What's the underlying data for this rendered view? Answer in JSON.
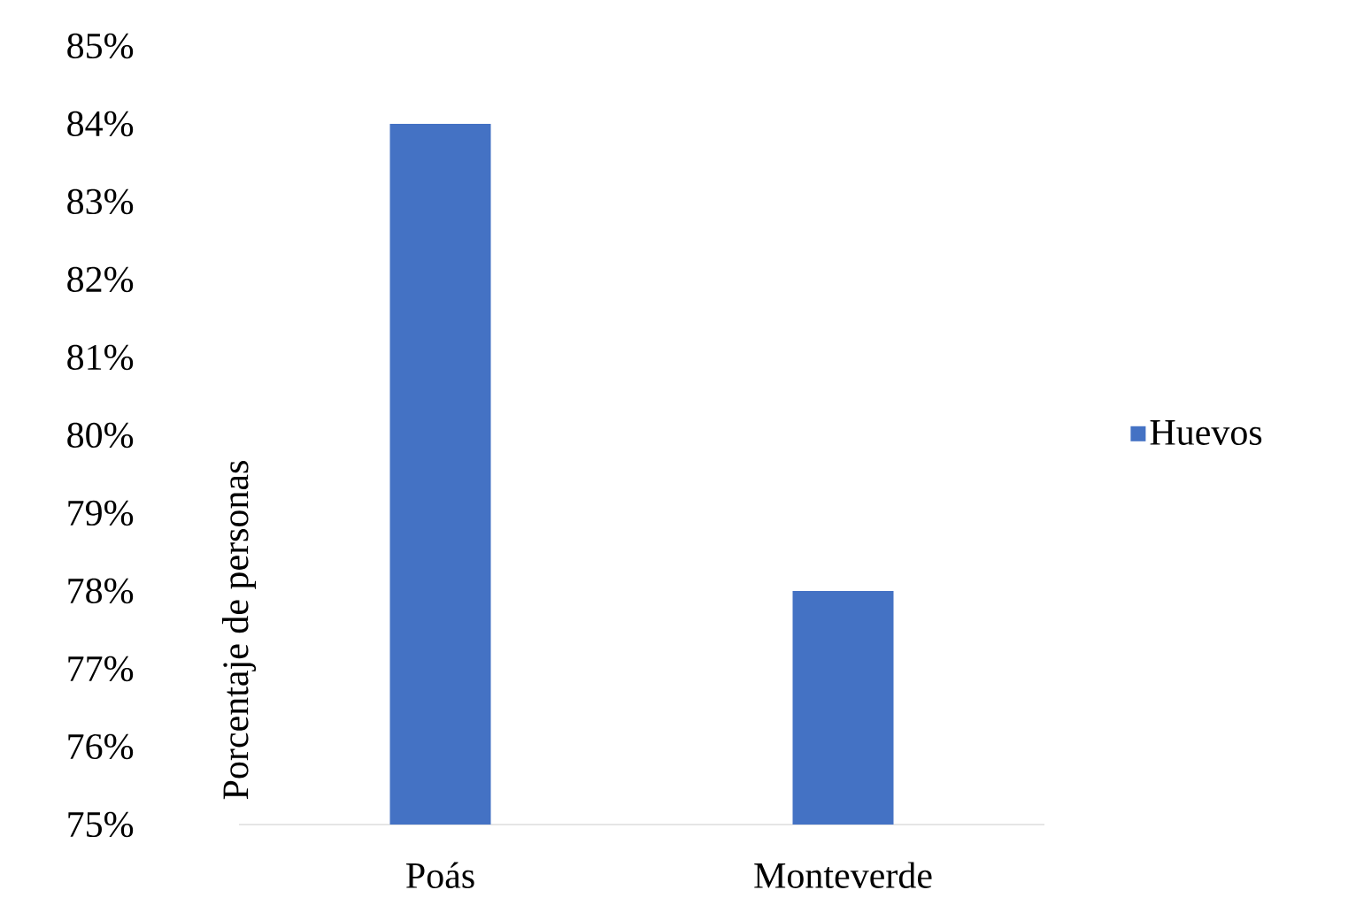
{
  "chart_data": {
    "type": "bar",
    "ylabel": "Porcentaje de personas",
    "categories": [
      "Poás",
      "Monteverde"
    ],
    "series": [
      {
        "name": "Huevos",
        "color": "#4472c4",
        "values": [
          84,
          78
        ]
      }
    ],
    "ylim": [
      75,
      85
    ],
    "yticks": [
      {
        "value": 75,
        "label": "75%"
      },
      {
        "value": 76,
        "label": "76%"
      },
      {
        "value": 77,
        "label": "77%"
      },
      {
        "value": 78,
        "label": "78%"
      },
      {
        "value": 79,
        "label": "79%"
      },
      {
        "value": 80,
        "label": "80%"
      },
      {
        "value": 81,
        "label": "81%"
      },
      {
        "value": 82,
        "label": "82%"
      },
      {
        "value": 83,
        "label": "83%"
      },
      {
        "value": 84,
        "label": "84%"
      },
      {
        "value": 85,
        "label": "85%"
      }
    ],
    "legend": "right"
  }
}
